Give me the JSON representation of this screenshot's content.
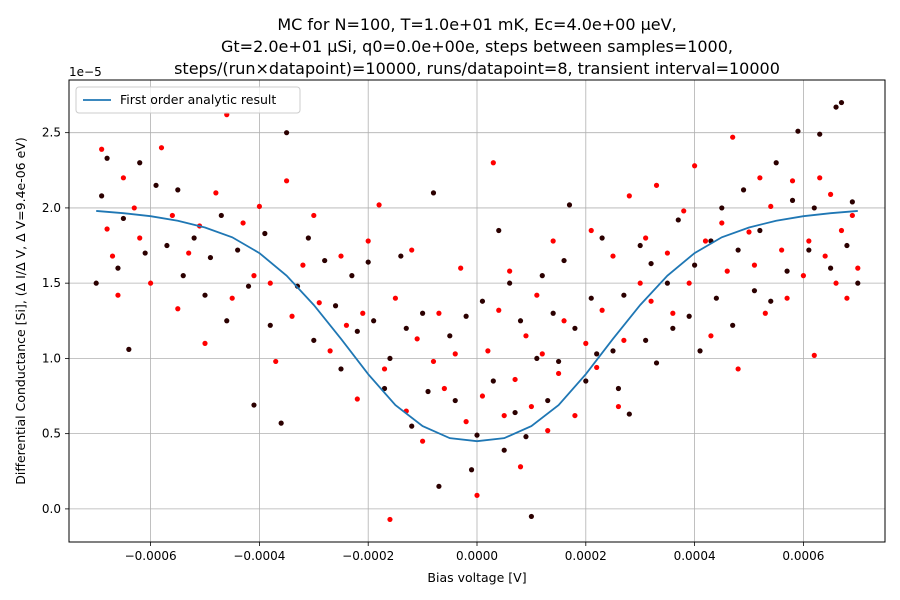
{
  "chart_data": {
    "type": "scatter",
    "title_lines": [
      "MC for N=100, T=1.0e+01 mK, Ec=4.0e+00 μeV,",
      "Gt=2.0e+01 μSi, q0=0.0e+00e, steps between samples=1000,",
      "steps/(run×datapoint)=10000, runs/datapoint=8, transient interval=10000"
    ],
    "xlabel": "Bias voltage [V]",
    "ylabel": "Differential Conductance [Si], (Δ I/Δ V, Δ V=9.4e-06 eV)",
    "y_offset_text": "1e−5",
    "xlim": [
      -0.00075,
      0.00075
    ],
    "ylim": [
      -2.2e-06,
      2.85e-05
    ],
    "x_ticks": [
      -0.0006,
      -0.0004,
      -0.0002,
      0.0,
      0.0002,
      0.0004,
      0.0006
    ],
    "x_tick_labels": [
      "−0.0006",
      "−0.0004",
      "−0.0002",
      "0.0000",
      "0.0002",
      "0.0004",
      "0.0006"
    ],
    "y_ticks": [
      0.0,
      5e-06,
      1e-05,
      1.5e-05,
      2e-05,
      2.5e-05
    ],
    "y_tick_labels": [
      "0.0",
      "0.5",
      "1.0",
      "1.5",
      "2.0",
      "2.5"
    ],
    "grid": true,
    "legend_position": "top-left",
    "series": [
      {
        "name": "First order analytic result",
        "kind": "line",
        "color": "#1f77b4",
        "x": [
          -0.0007,
          -0.00065,
          -0.0006,
          -0.00055,
          -0.0005,
          -0.00045,
          -0.0004,
          -0.00035,
          -0.0003,
          -0.00025,
          -0.0002,
          -0.00015,
          -0.0001,
          -5e-05,
          0.0,
          5e-05,
          0.0001,
          0.00015,
          0.0002,
          0.00025,
          0.0003,
          0.00035,
          0.0004,
          0.00045,
          0.0005,
          0.00055,
          0.0006,
          0.00065,
          0.0007
        ],
        "y": [
          1.98e-05,
          1.965e-05,
          1.945e-05,
          1.915e-05,
          1.87e-05,
          1.805e-05,
          1.7e-05,
          1.55e-05,
          1.355e-05,
          1.13e-05,
          8.95e-06,
          6.9e-06,
          5.5e-06,
          4.7e-06,
          4.5e-06,
          4.7e-06,
          5.5e-06,
          6.9e-06,
          8.95e-06,
          1.13e-05,
          1.355e-05,
          1.55e-05,
          1.7e-05,
          1.805e-05,
          1.87e-05,
          1.915e-05,
          1.945e-05,
          1.965e-05,
          1.98e-05
        ]
      },
      {
        "name": "",
        "kind": "scatter",
        "color": "#ff0000",
        "note_points": [
          [
            -0.00069,
            2.39e-05
          ],
          [
            -0.00068,
            1.86e-05
          ],
          [
            -0.00067,
            1.68e-05
          ],
          [
            -0.00066,
            1.42e-05
          ],
          [
            -0.00065,
            2.2e-05
          ],
          [
            -0.00063,
            2e-05
          ],
          [
            -0.00062,
            1.8e-05
          ],
          [
            -0.0006,
            1.5e-05
          ],
          [
            -0.00058,
            2.4e-05
          ],
          [
            -0.00056,
            1.95e-05
          ],
          [
            -0.00055,
            1.33e-05
          ],
          [
            -0.00053,
            1.7e-05
          ],
          [
            -0.00051,
            1.88e-05
          ],
          [
            -0.0005,
            1.1e-05
          ],
          [
            -0.00048,
            2.1e-05
          ],
          [
            -0.00046,
            2.62e-05
          ],
          [
            -0.00045,
            1.4e-05
          ],
          [
            -0.00043,
            1.9e-05
          ],
          [
            -0.00041,
            1.55e-05
          ],
          [
            -0.0004,
            2.01e-05
          ],
          [
            -0.00038,
            1.5e-05
          ],
          [
            -0.00037,
            9.8e-06
          ],
          [
            -0.00035,
            2.18e-05
          ],
          [
            -0.00034,
            1.28e-05
          ],
          [
            -0.00032,
            1.62e-05
          ],
          [
            -0.0003,
            1.95e-05
          ],
          [
            -0.00029,
            1.37e-05
          ],
          [
            -0.00027,
            1.05e-05
          ],
          [
            -0.00025,
            1.68e-05
          ],
          [
            -0.00024,
            1.22e-05
          ],
          [
            -0.00022,
            7.3e-06
          ],
          [
            -0.00021,
            1.3e-05
          ],
          [
            -0.0002,
            1.78e-05
          ],
          [
            -0.00018,
            2.02e-05
          ],
          [
            -0.00017,
            9.3e-06
          ],
          [
            -0.00016,
            -7e-07
          ],
          [
            -0.00015,
            1.4e-05
          ],
          [
            -0.00013,
            6.5e-06
          ],
          [
            -0.00012,
            1.72e-05
          ],
          [
            -0.00011,
            1.13e-05
          ],
          [
            -0.0001,
            4.5e-06
          ],
          [
            -8e-05,
            9.8e-06
          ],
          [
            -7e-05,
            1.3e-05
          ],
          [
            -6e-05,
            8e-06
          ],
          [
            -4e-05,
            1.03e-05
          ],
          [
            -3e-05,
            1.6e-05
          ],
          [
            -2e-05,
            5.8e-06
          ],
          [
            0.0,
            9e-07
          ],
          [
            1e-05,
            7.5e-06
          ],
          [
            2e-05,
            1.05e-05
          ],
          [
            3e-05,
            2.3e-05
          ],
          [
            4e-05,
            1.32e-05
          ],
          [
            5e-05,
            6.2e-06
          ],
          [
            6e-05,
            1.58e-05
          ],
          [
            7e-05,
            8.6e-06
          ],
          [
            8e-05,
            2.8e-06
          ],
          [
            9e-05,
            1.15e-05
          ],
          [
            0.0001,
            6.8e-06
          ],
          [
            0.00011,
            1.42e-05
          ],
          [
            0.00012,
            1.03e-05
          ],
          [
            0.00013,
            5.2e-06
          ],
          [
            0.00014,
            1.78e-05
          ],
          [
            0.00015,
            9e-06
          ],
          [
            0.00016,
            1.25e-05
          ],
          [
            0.00018,
            6.2e-06
          ],
          [
            0.0002,
            1.1e-05
          ],
          [
            0.00021,
            1.85e-05
          ],
          [
            0.00022,
            9.4e-06
          ],
          [
            0.00023,
            1.32e-05
          ],
          [
            0.00025,
            1.68e-05
          ],
          [
            0.00026,
            6.8e-06
          ],
          [
            0.00027,
            1.12e-05
          ],
          [
            0.00028,
            2.08e-05
          ],
          [
            0.0003,
            1.5e-05
          ],
          [
            0.00031,
            1.8e-05
          ],
          [
            0.00032,
            1.38e-05
          ],
          [
            0.00033,
            2.15e-05
          ],
          [
            0.00035,
            1.7e-05
          ],
          [
            0.00036,
            1.3e-05
          ],
          [
            0.00038,
            1.98e-05
          ],
          [
            0.00039,
            1.5e-05
          ],
          [
            0.0004,
            2.28e-05
          ],
          [
            0.00042,
            1.78e-05
          ],
          [
            0.00043,
            1.15e-05
          ],
          [
            0.00045,
            1.9e-05
          ],
          [
            0.00046,
            1.58e-05
          ],
          [
            0.00047,
            2.47e-05
          ],
          [
            0.00048,
            9.3e-06
          ],
          [
            0.0005,
            1.84e-05
          ],
          [
            0.00051,
            1.62e-05
          ],
          [
            0.00052,
            2.2e-05
          ],
          [
            0.00053,
            1.3e-05
          ],
          [
            0.00054,
            2.01e-05
          ],
          [
            0.00056,
            1.72e-05
          ],
          [
            0.00057,
            1.4e-05
          ],
          [
            0.00058,
            2.18e-05
          ],
          [
            0.0006,
            1.55e-05
          ],
          [
            0.00061,
            1.78e-05
          ],
          [
            0.00062,
            1.02e-05
          ],
          [
            0.00063,
            2.2e-05
          ],
          [
            0.00064,
            1.68e-05
          ],
          [
            0.00065,
            2.09e-05
          ],
          [
            0.00066,
            1.5e-05
          ],
          [
            0.00067,
            1.85e-05
          ],
          [
            0.00068,
            1.4e-05
          ],
          [
            0.00069,
            1.95e-05
          ],
          [
            0.0007,
            1.6e-05
          ]
        ]
      },
      {
        "name": "",
        "kind": "scatter",
        "color": "#2b0000",
        "note_points": [
          [
            -0.0007,
            1.5e-05
          ],
          [
            -0.00069,
            2.08e-05
          ],
          [
            -0.00068,
            2.33e-05
          ],
          [
            -0.00066,
            1.6e-05
          ],
          [
            -0.00065,
            1.93e-05
          ],
          [
            -0.00064,
            1.06e-05
          ],
          [
            -0.00062,
            2.3e-05
          ],
          [
            -0.00061,
            1.7e-05
          ],
          [
            -0.00059,
            2.15e-05
          ],
          [
            -0.00057,
            1.75e-05
          ],
          [
            -0.00055,
            2.12e-05
          ],
          [
            -0.00054,
            1.55e-05
          ],
          [
            -0.00052,
            1.8e-05
          ],
          [
            -0.0005,
            1.42e-05
          ],
          [
            -0.00049,
            1.67e-05
          ],
          [
            -0.00047,
            1.95e-05
          ],
          [
            -0.00046,
            1.25e-05
          ],
          [
            -0.00044,
            1.72e-05
          ],
          [
            -0.00042,
            1.48e-05
          ],
          [
            -0.00041,
            6.9e-06
          ],
          [
            -0.00039,
            1.83e-05
          ],
          [
            -0.00038,
            1.22e-05
          ],
          [
            -0.00036,
            5.7e-06
          ],
          [
            -0.00035,
            2.5e-05
          ],
          [
            -0.00033,
            1.48e-05
          ],
          [
            -0.00031,
            1.8e-05
          ],
          [
            -0.0003,
            1.12e-05
          ],
          [
            -0.00028,
            1.65e-05
          ],
          [
            -0.00026,
            1.35e-05
          ],
          [
            -0.00025,
            9.3e-06
          ],
          [
            -0.00023,
            1.55e-05
          ],
          [
            -0.00022,
            1.18e-05
          ],
          [
            -0.0002,
            1.64e-05
          ],
          [
            -0.00019,
            1.25e-05
          ],
          [
            -0.00017,
            8e-06
          ],
          [
            -0.00016,
            1e-05
          ],
          [
            -0.00014,
            1.68e-05
          ],
          [
            -0.00013,
            1.2e-05
          ],
          [
            -0.00012,
            5.5e-06
          ],
          [
            -0.0001,
            1.3e-05
          ],
          [
            -9e-05,
            7.8e-06
          ],
          [
            -8e-05,
            2.1e-05
          ],
          [
            -7e-05,
            1.5e-06
          ],
          [
            -5e-05,
            1.15e-05
          ],
          [
            -4e-05,
            7.2e-06
          ],
          [
            -2e-05,
            1.28e-05
          ],
          [
            -1e-05,
            2.6e-06
          ],
          [
            0.0,
            4.9e-06
          ],
          [
            1e-05,
            1.38e-05
          ],
          [
            3e-05,
            8.5e-06
          ],
          [
            4e-05,
            1.85e-05
          ],
          [
            5e-05,
            3.9e-06
          ],
          [
            6e-05,
            1.5e-05
          ],
          [
            7e-05,
            6.4e-06
          ],
          [
            8e-05,
            1.25e-05
          ],
          [
            9e-05,
            4.8e-06
          ],
          [
            0.0001,
            -5e-07
          ],
          [
            0.00011,
            1e-05
          ],
          [
            0.00012,
            1.55e-05
          ],
          [
            0.00013,
            7.2e-06
          ],
          [
            0.00014,
            1.3e-05
          ],
          [
            0.00015,
            9.8e-06
          ],
          [
            0.00016,
            1.65e-05
          ],
          [
            0.00017,
            2.02e-05
          ],
          [
            0.00018,
            1.2e-05
          ],
          [
            0.0002,
            8.5e-06
          ],
          [
            0.00021,
            1.4e-05
          ],
          [
            0.00022,
            1.03e-05
          ],
          [
            0.00023,
            1.8e-05
          ],
          [
            0.00025,
            1.05e-05
          ],
          [
            0.00026,
            8e-06
          ],
          [
            0.00027,
            1.42e-05
          ],
          [
            0.00028,
            6.3e-06
          ],
          [
            0.0003,
            1.75e-05
          ],
          [
            0.00031,
            1.12e-05
          ],
          [
            0.00032,
            1.63e-05
          ],
          [
            0.00033,
            9.7e-06
          ],
          [
            0.00035,
            1.5e-05
          ],
          [
            0.00036,
            1.2e-05
          ],
          [
            0.00037,
            1.92e-05
          ],
          [
            0.00039,
            1.28e-05
          ],
          [
            0.0004,
            1.62e-05
          ],
          [
            0.00041,
            1.05e-05
          ],
          [
            0.00043,
            1.78e-05
          ],
          [
            0.00044,
            1.4e-05
          ],
          [
            0.00045,
            2e-05
          ],
          [
            0.00047,
            1.22e-05
          ],
          [
            0.00048,
            1.72e-05
          ],
          [
            0.00049,
            2.12e-05
          ],
          [
            0.00051,
            1.45e-05
          ],
          [
            0.00052,
            1.85e-05
          ],
          [
            0.00054,
            1.38e-05
          ],
          [
            0.00055,
            2.3e-05
          ],
          [
            0.00057,
            1.58e-05
          ],
          [
            0.00058,
            2.05e-05
          ],
          [
            0.00059,
            2.51e-05
          ],
          [
            0.00061,
            1.72e-05
          ],
          [
            0.00062,
            2e-05
          ],
          [
            0.00063,
            2.49e-05
          ],
          [
            0.00065,
            1.6e-05
          ],
          [
            0.00066,
            2.67e-05
          ],
          [
            0.00067,
            2.7e-05
          ],
          [
            0.00068,
            1.75e-05
          ],
          [
            0.00069,
            2.04e-05
          ],
          [
            0.0007,
            1.5e-05
          ]
        ]
      }
    ]
  },
  "legend": {
    "line_label": "First order analytic result",
    "line_color": "#1f77b4"
  }
}
